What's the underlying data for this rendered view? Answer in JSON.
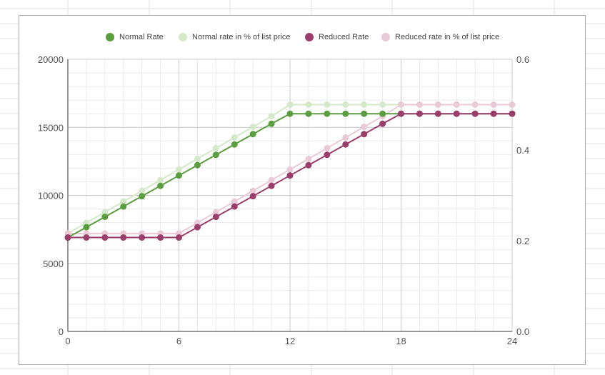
{
  "chart_data": {
    "type": "line",
    "x": [
      0,
      1,
      2,
      3,
      4,
      5,
      6,
      7,
      8,
      9,
      10,
      11,
      12,
      13,
      14,
      15,
      16,
      17,
      18,
      19,
      20,
      21,
      22,
      23,
      24
    ],
    "xlim": [
      0,
      24
    ],
    "xticks": [
      "0",
      "6",
      "12",
      "18",
      "24"
    ],
    "ylim_left": [
      0,
      20000
    ],
    "yticks_left": [
      "0",
      "5000",
      "10000",
      "15000",
      "20000"
    ],
    "ylim_right": [
      0,
      0.6
    ],
    "yticks_right": [
      "0.0",
      "0.2",
      "0.4",
      "0.6"
    ],
    "grid": true,
    "legend_position": "top",
    "series": [
      {
        "name": "Normal Rate",
        "axis": "left",
        "color": "#5a9e3f",
        "values": [
          6900,
          7660,
          8420,
          9180,
          9940,
          10700,
          11460,
          12220,
          12980,
          13740,
          14500,
          15260,
          16000,
          16000,
          16000,
          16000,
          16000,
          16000,
          16000,
          16000,
          16000,
          16000,
          16000,
          16000,
          16000
        ]
      },
      {
        "name": "Normal rate in % of list price",
        "axis": "right",
        "color": "#d3e9c9",
        "values": [
          0.216,
          0.2395,
          0.263,
          0.2865,
          0.31,
          0.3335,
          0.357,
          0.3805,
          0.404,
          0.4275,
          0.451,
          0.4745,
          0.5,
          0.5,
          0.5,
          0.5,
          0.5,
          0.5,
          0.5,
          0.5,
          0.5,
          0.5,
          0.5,
          0.5,
          0.5
        ]
      },
      {
        "name": "Reduced Rate",
        "axis": "left",
        "color": "#9b3e6b",
        "values": [
          6900,
          6900,
          6900,
          6900,
          6900,
          6900,
          6900,
          7660,
          8420,
          9180,
          9940,
          10700,
          11460,
          12220,
          12980,
          13740,
          14500,
          15260,
          16000,
          16000,
          16000,
          16000,
          16000,
          16000,
          16000
        ]
      },
      {
        "name": "Reduced rate in % of list price",
        "axis": "right",
        "color": "#ebcad8",
        "values": [
          0.216,
          0.216,
          0.216,
          0.216,
          0.216,
          0.216,
          0.216,
          0.2395,
          0.263,
          0.2865,
          0.31,
          0.3335,
          0.357,
          0.3805,
          0.404,
          0.4275,
          0.451,
          0.4745,
          0.5,
          0.5,
          0.5,
          0.5,
          0.5,
          0.5,
          0.5
        ]
      }
    ]
  }
}
